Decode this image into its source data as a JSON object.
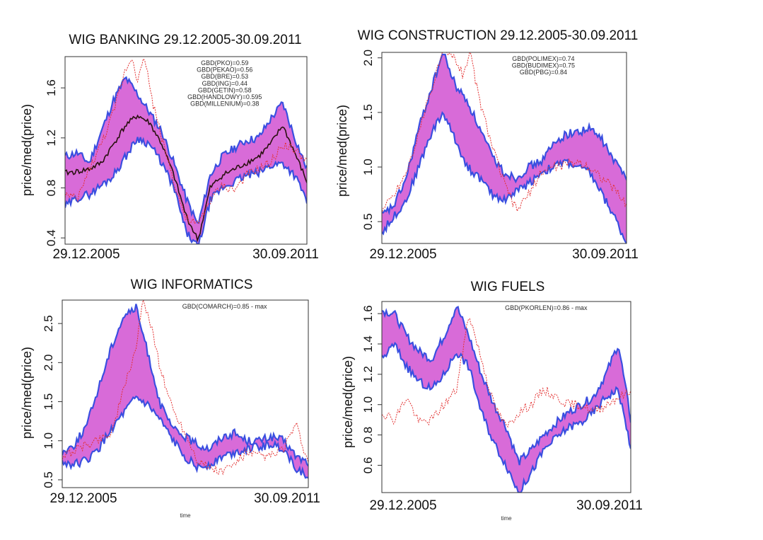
{
  "chart_data": [
    {
      "type": "area",
      "title": "WIG BANKING 29.12.2005-30.09.2011",
      "ylabel": "price/med(price)",
      "xlabel": "",
      "ylim": [
        0.35,
        1.85
      ],
      "yticks": [
        0.4,
        0.8,
        1.2,
        1.6
      ],
      "ytick_labels": [
        "0.4",
        "0.8",
        "1.2",
        "1.6"
      ],
      "date_labels": [
        "29.12.2005",
        "30.09.2011"
      ],
      "annotations": [
        "GBD(PKO)=0.59",
        "GBD(PEKAO)=0.56",
        "GBD(BRE)=0.53",
        "GBD(ING)=0.44",
        "GBD(GETIN)=0.58",
        "GBD(HANDLOWY)=0.595",
        "GBD(MILLENIUM)=0.38"
      ],
      "series": [
        {
          "name": "band-upper",
          "x": [
            0,
            0.05,
            0.1,
            0.15,
            0.2,
            0.25,
            0.3,
            0.35,
            0.4,
            0.45,
            0.5,
            0.55,
            0.6,
            0.65,
            0.7,
            0.75,
            0.8,
            0.85,
            0.9,
            0.95,
            1.0
          ],
          "values": [
            1.05,
            1.08,
            1.0,
            1.25,
            1.5,
            1.68,
            1.55,
            1.4,
            1.25,
            1.0,
            0.72,
            0.5,
            0.9,
            1.05,
            1.12,
            1.18,
            1.2,
            1.35,
            1.48,
            1.2,
            0.95
          ]
        },
        {
          "name": "band-lower",
          "x": [
            0,
            0.05,
            0.1,
            0.15,
            0.2,
            0.25,
            0.3,
            0.35,
            0.4,
            0.45,
            0.5,
            0.55,
            0.6,
            0.65,
            0.7,
            0.75,
            0.8,
            0.85,
            0.9,
            0.95,
            1.0
          ],
          "values": [
            0.65,
            0.72,
            0.75,
            0.82,
            0.9,
            1.05,
            1.2,
            1.15,
            1.0,
            0.8,
            0.45,
            0.32,
            0.7,
            0.8,
            0.85,
            0.9,
            0.92,
            0.98,
            1.0,
            0.9,
            0.7
          ]
        },
        {
          "name": "median-line",
          "x": [
            0,
            0.05,
            0.1,
            0.15,
            0.2,
            0.25,
            0.3,
            0.35,
            0.4,
            0.45,
            0.5,
            0.55,
            0.6,
            0.65,
            0.7,
            0.75,
            0.8,
            0.85,
            0.9,
            0.95,
            1.0
          ],
          "values": [
            0.92,
            0.93,
            0.95,
            1.0,
            1.15,
            1.3,
            1.38,
            1.32,
            1.15,
            0.9,
            0.58,
            0.38,
            0.8,
            0.9,
            0.95,
            1.0,
            1.05,
            1.15,
            1.3,
            1.08,
            0.85
          ]
        },
        {
          "name": "index-dotted",
          "x": [
            0,
            0.05,
            0.1,
            0.15,
            0.2,
            0.25,
            0.28,
            0.3,
            0.33,
            0.36,
            0.4,
            0.45,
            0.5,
            0.55,
            0.6,
            0.65,
            0.7,
            0.75,
            0.8,
            0.85,
            0.9,
            0.95,
            1.0
          ],
          "values": [
            0.75,
            0.7,
            0.95,
            1.15,
            1.4,
            1.75,
            1.85,
            1.65,
            1.85,
            1.5,
            1.2,
            0.85,
            0.55,
            0.5,
            0.7,
            0.82,
            0.78,
            0.9,
            0.95,
            1.0,
            1.15,
            1.1,
            1.02
          ]
        }
      ]
    },
    {
      "type": "area",
      "title": "WIG CONSTRUCTION 29.12.2005-30.09.2011",
      "ylabel": "price/med(price)",
      "xlabel": "",
      "ylim": [
        0.3,
        2.05
      ],
      "yticks": [
        0.5,
        1.0,
        1.5,
        2.0
      ],
      "ytick_labels": [
        "0.5",
        "1.0",
        "1.5",
        "2.0"
      ],
      "date_labels": [
        "29.12.2005",
        "30.09.2011"
      ],
      "annotations": [
        "GBD(POLIMEX)=0.74",
        "GBD(BUDIMEX)=0.75",
        "GBD(PBG)=0.84"
      ],
      "series": [
        {
          "name": "band-upper",
          "x": [
            0,
            0.05,
            0.1,
            0.15,
            0.2,
            0.25,
            0.3,
            0.35,
            0.4,
            0.45,
            0.5,
            0.55,
            0.6,
            0.65,
            0.7,
            0.75,
            0.8,
            0.85,
            0.9,
            0.95,
            1.0
          ],
          "values": [
            0.55,
            0.65,
            0.9,
            1.35,
            1.7,
            2.05,
            1.75,
            1.6,
            1.35,
            1.1,
            0.95,
            0.9,
            1.0,
            1.05,
            1.2,
            1.3,
            1.32,
            1.35,
            1.25,
            1.05,
            0.92
          ]
        },
        {
          "name": "band-lower",
          "x": [
            0,
            0.05,
            0.1,
            0.15,
            0.2,
            0.25,
            0.3,
            0.35,
            0.4,
            0.45,
            0.5,
            0.55,
            0.6,
            0.65,
            0.7,
            0.75,
            0.8,
            0.85,
            0.9,
            0.95,
            1.0
          ],
          "values": [
            0.4,
            0.55,
            0.7,
            1.0,
            1.3,
            1.5,
            1.25,
            1.0,
            0.9,
            0.75,
            0.7,
            0.78,
            0.85,
            0.95,
            1.0,
            1.05,
            1.0,
            0.95,
            0.75,
            0.55,
            0.3
          ]
        },
        {
          "name": "index-dotted",
          "x": [
            0,
            0.05,
            0.1,
            0.15,
            0.2,
            0.25,
            0.3,
            0.33,
            0.36,
            0.4,
            0.45,
            0.5,
            0.55,
            0.6,
            0.65,
            0.7,
            0.75,
            0.8,
            0.85,
            0.9,
            0.95,
            1.0
          ],
          "values": [
            0.6,
            0.75,
            0.95,
            1.3,
            1.7,
            2.05,
            2.0,
            1.85,
            2.05,
            1.6,
            1.2,
            0.85,
            0.6,
            0.75,
            0.95,
            1.0,
            1.02,
            1.05,
            1.0,
            0.9,
            0.8,
            0.65
          ]
        }
      ]
    },
    {
      "type": "area",
      "title": "WIG INFORMATICS",
      "ylabel": "price/med(price)",
      "xlabel": "time",
      "ylim": [
        0.4,
        2.8
      ],
      "yticks": [
        0.5,
        1.0,
        1.5,
        2.0,
        2.5
      ],
      "ytick_labels": [
        "0.5",
        "1.0",
        "1.5",
        "2.0",
        "2.5"
      ],
      "date_labels": [
        "29.12.2005",
        "30.09.2011"
      ],
      "annotations": [
        "GBD(COMARCH)=0.85 - max"
      ],
      "series": [
        {
          "name": "band-upper",
          "x": [
            0,
            0.05,
            0.1,
            0.15,
            0.2,
            0.25,
            0.3,
            0.35,
            0.4,
            0.45,
            0.5,
            0.55,
            0.6,
            0.65,
            0.7,
            0.75,
            0.8,
            0.85,
            0.9,
            0.95,
            1.0
          ],
          "values": [
            0.85,
            0.95,
            1.2,
            1.7,
            2.2,
            2.6,
            2.7,
            2.1,
            1.45,
            1.15,
            1.05,
            0.95,
            0.9,
            1.05,
            1.1,
            1.0,
            1.0,
            1.05,
            1.0,
            0.8,
            0.72
          ]
        },
        {
          "name": "band-lower",
          "x": [
            0,
            0.05,
            0.1,
            0.15,
            0.2,
            0.25,
            0.3,
            0.35,
            0.4,
            0.45,
            0.5,
            0.55,
            0.6,
            0.65,
            0.7,
            0.75,
            0.8,
            0.85,
            0.9,
            0.95,
            1.0
          ],
          "values": [
            0.72,
            0.7,
            0.75,
            0.9,
            1.15,
            1.35,
            1.55,
            1.45,
            1.25,
            1.0,
            0.8,
            0.65,
            0.7,
            0.8,
            0.85,
            0.9,
            0.92,
            0.95,
            0.9,
            0.65,
            0.55
          ]
        },
        {
          "name": "index-dotted",
          "x": [
            0,
            0.2,
            0.3,
            0.33,
            0.36,
            0.4,
            0.45,
            0.5,
            0.55,
            0.6,
            0.65,
            0.7,
            0.75,
            0.8,
            0.85,
            0.9,
            0.95,
            1.0
          ],
          "values": [
            0.8,
            1.1,
            2.2,
            2.8,
            2.5,
            1.9,
            1.4,
            1.1,
            0.75,
            0.65,
            0.6,
            0.7,
            0.85,
            0.8,
            0.8,
            0.9,
            1.2,
            0.7
          ]
        }
      ]
    },
    {
      "type": "area",
      "title": "WIG FUELS",
      "ylabel": "price/med(price)",
      "xlabel": "time",
      "ylim": [
        0.42,
        1.68
      ],
      "yticks": [
        0.6,
        0.8,
        1.0,
        1.2,
        1.4,
        1.6
      ],
      "ytick_labels": [
        "0.6",
        "0.8",
        "1.0",
        "1.2",
        "1.4",
        "1.6"
      ],
      "date_labels": [
        "29.12.2005",
        "30.09.2011"
      ],
      "annotations": [
        "GBD(PKORLEN)=0.86 - max"
      ],
      "series": [
        {
          "name": "band-upper",
          "x": [
            0,
            0.05,
            0.1,
            0.15,
            0.2,
            0.25,
            0.3,
            0.35,
            0.4,
            0.45,
            0.5,
            0.55,
            0.6,
            0.65,
            0.7,
            0.75,
            0.8,
            0.85,
            0.9,
            0.95,
            1.0
          ],
          "values": [
            1.62,
            1.6,
            1.45,
            1.35,
            1.3,
            1.45,
            1.65,
            1.45,
            1.2,
            1.0,
            0.85,
            0.62,
            0.7,
            0.8,
            0.88,
            0.95,
            1.0,
            1.05,
            1.2,
            1.4,
            0.9
          ]
        },
        {
          "name": "band-lower",
          "x": [
            0,
            0.05,
            0.1,
            0.15,
            0.2,
            0.25,
            0.3,
            0.35,
            0.4,
            0.45,
            0.5,
            0.55,
            0.6,
            0.65,
            0.7,
            0.75,
            0.8,
            0.85,
            0.9,
            0.95,
            1.0
          ],
          "values": [
            1.3,
            1.4,
            1.25,
            1.15,
            1.1,
            1.2,
            1.35,
            1.25,
            0.95,
            0.75,
            0.6,
            0.42,
            0.55,
            0.7,
            0.78,
            0.85,
            0.88,
            0.95,
            1.05,
            1.1,
            0.72
          ]
        },
        {
          "name": "index-dotted",
          "x": [
            0,
            0.05,
            0.1,
            0.15,
            0.2,
            0.25,
            0.3,
            0.35,
            0.4,
            0.45,
            0.5,
            0.55,
            0.6,
            0.65,
            0.7,
            0.75,
            0.8,
            0.85,
            0.9,
            0.95,
            1.0
          ],
          "values": [
            0.95,
            0.9,
            1.05,
            0.88,
            0.9,
            1.0,
            1.1,
            1.6,
            1.3,
            1.0,
            0.85,
            0.95,
            1.0,
            1.1,
            1.05,
            1.0,
            1.0,
            0.95,
            1.0,
            1.05,
            1.08
          ]
        }
      ]
    }
  ]
}
